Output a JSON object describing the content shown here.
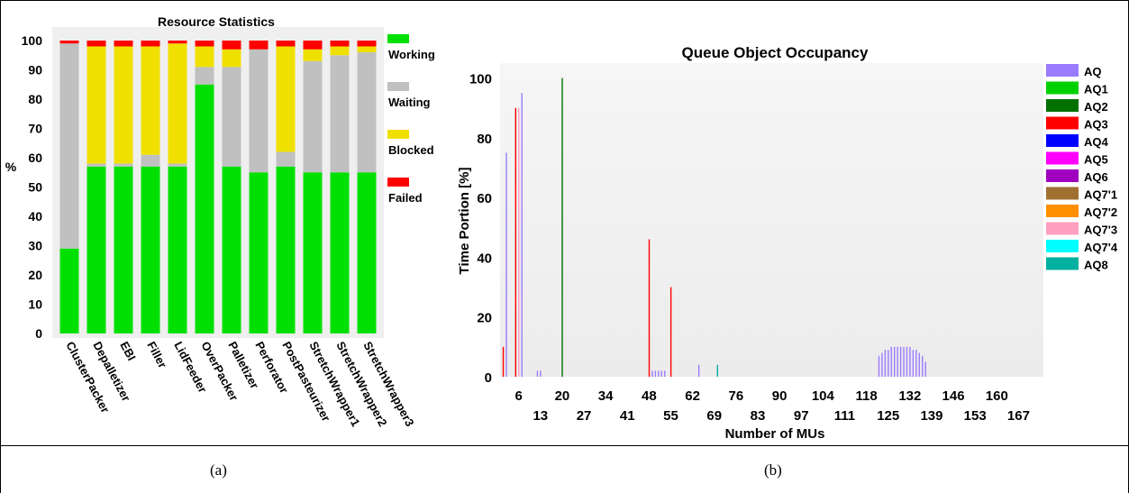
{
  "panels": {
    "a_caption": "(a)",
    "b_caption": "(b)"
  },
  "chart_data": [
    {
      "type": "bar",
      "stacked": true,
      "title": "Resource Statistics",
      "ylabel": "%",
      "ylim": [
        0,
        100
      ],
      "yticks": [
        0,
        10,
        20,
        30,
        40,
        50,
        60,
        70,
        80,
        90,
        100
      ],
      "legend_position": "right",
      "categories": [
        "ClusterPacker",
        "Depalletizer",
        "EBI",
        "Filler",
        "LidFeeder",
        "OverPacker",
        "Palletizer",
        "Perforator",
        "PostPasteurizer",
        "StretchWrapper1",
        "StretchWrapper2",
        "StretchWrapper3"
      ],
      "series": [
        {
          "name": "Working",
          "color": "#00e000",
          "values": [
            29,
            57,
            57,
            57,
            57,
            85,
            57,
            55,
            57,
            55,
            55,
            55
          ]
        },
        {
          "name": "Waiting",
          "color": "#c0c0c0",
          "values": [
            70,
            1,
            1,
            4,
            1,
            6,
            34,
            42,
            5,
            38,
            40,
            41
          ]
        },
        {
          "name": "Blocked",
          "color": "#f0e000",
          "values": [
            0,
            40,
            40,
            37,
            41,
            7,
            6,
            0,
            36,
            4,
            3,
            2
          ]
        },
        {
          "name": "Failed",
          "color": "#ff0000",
          "values": [
            1,
            2,
            2,
            2,
            1,
            2,
            3,
            3,
            2,
            3,
            2,
            2
          ]
        }
      ]
    },
    {
      "type": "bar",
      "title": "Queue Object Occupancy",
      "xlabel": "Number of MUs",
      "ylabel": "Time Portion [%]",
      "xlim": [
        0,
        175
      ],
      "ylim": [
        0,
        105
      ],
      "yticks": [
        0,
        20,
        40,
        60,
        80,
        100
      ],
      "xticks_upper": [
        6,
        20,
        34,
        48,
        62,
        76,
        90,
        104,
        118,
        132,
        146,
        160
      ],
      "xticks_lower": [
        13,
        27,
        41,
        55,
        69,
        83,
        97,
        111,
        125,
        139,
        153,
        167
      ],
      "legend_position": "right",
      "legend": [
        {
          "name": "AQ",
          "color": "#9b7bff"
        },
        {
          "name": "AQ1",
          "color": "#00d000"
        },
        {
          "name": "AQ2",
          "color": "#007000"
        },
        {
          "name": "AQ3",
          "color": "#ff0000"
        },
        {
          "name": "AQ4",
          "color": "#0000ff"
        },
        {
          "name": "AQ5",
          "color": "#ff00ff"
        },
        {
          "name": "AQ6",
          "color": "#a000c0"
        },
        {
          "name": "AQ7'1",
          "color": "#a07030"
        },
        {
          "name": "AQ7'2",
          "color": "#ff9000"
        },
        {
          "name": "AQ7'3",
          "color": "#ffa0c0"
        },
        {
          "name": "AQ7'4",
          "color": "#00ffff"
        },
        {
          "name": "AQ8",
          "color": "#00b0a0"
        }
      ],
      "bars": [
        {
          "x": 1,
          "y": 10,
          "color": "#ff0000"
        },
        {
          "x": 2,
          "y": 75,
          "color": "#9b7bff"
        },
        {
          "x": 5,
          "y": 90,
          "color": "#ff0000"
        },
        {
          "x": 6,
          "y": 90,
          "color": "#ffa0c0"
        },
        {
          "x": 7,
          "y": 95,
          "color": "#9b7bff"
        },
        {
          "x": 12,
          "y": 2,
          "color": "#9b7bff"
        },
        {
          "x": 13,
          "y": 2,
          "color": "#9b7bff"
        },
        {
          "x": 20,
          "y": 100,
          "color": "#007000"
        },
        {
          "x": 48,
          "y": 46,
          "color": "#ff0000"
        },
        {
          "x": 49,
          "y": 2,
          "color": "#9b7bff"
        },
        {
          "x": 50,
          "y": 2,
          "color": "#9b7bff"
        },
        {
          "x": 51,
          "y": 2,
          "color": "#9b7bff"
        },
        {
          "x": 52,
          "y": 2,
          "color": "#9b7bff"
        },
        {
          "x": 53,
          "y": 2,
          "color": "#9b7bff"
        },
        {
          "x": 55,
          "y": 30,
          "color": "#ff0000"
        },
        {
          "x": 64,
          "y": 4,
          "color": "#9b7bff"
        },
        {
          "x": 70,
          "y": 4,
          "color": "#00b0a0"
        },
        {
          "x": 122,
          "y": 7,
          "color": "#9b7bff"
        },
        {
          "x": 123,
          "y": 8,
          "color": "#9b7bff"
        },
        {
          "x": 124,
          "y": 9,
          "color": "#9b7bff"
        },
        {
          "x": 125,
          "y": 9,
          "color": "#9b7bff"
        },
        {
          "x": 126,
          "y": 10,
          "color": "#9b7bff"
        },
        {
          "x": 127,
          "y": 10,
          "color": "#9b7bff"
        },
        {
          "x": 128,
          "y": 10,
          "color": "#9b7bff"
        },
        {
          "x": 129,
          "y": 10,
          "color": "#9b7bff"
        },
        {
          "x": 130,
          "y": 10,
          "color": "#9b7bff"
        },
        {
          "x": 131,
          "y": 10,
          "color": "#9b7bff"
        },
        {
          "x": 132,
          "y": 10,
          "color": "#9b7bff"
        },
        {
          "x": 133,
          "y": 9,
          "color": "#9b7bff"
        },
        {
          "x": 134,
          "y": 9,
          "color": "#9b7bff"
        },
        {
          "x": 135,
          "y": 8,
          "color": "#9b7bff"
        },
        {
          "x": 136,
          "y": 7,
          "color": "#9b7bff"
        },
        {
          "x": 137,
          "y": 5,
          "color": "#9b7bff"
        }
      ]
    }
  ]
}
